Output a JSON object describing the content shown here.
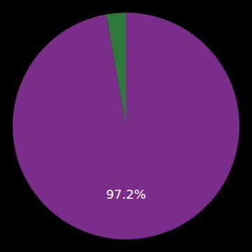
{
  "chart_data": {
    "type": "pie",
    "values": [
      97.2,
      2.8
    ],
    "colors": [
      "#7b2d8b",
      "#2d7a3a"
    ],
    "annotation": "97.2%"
  }
}
